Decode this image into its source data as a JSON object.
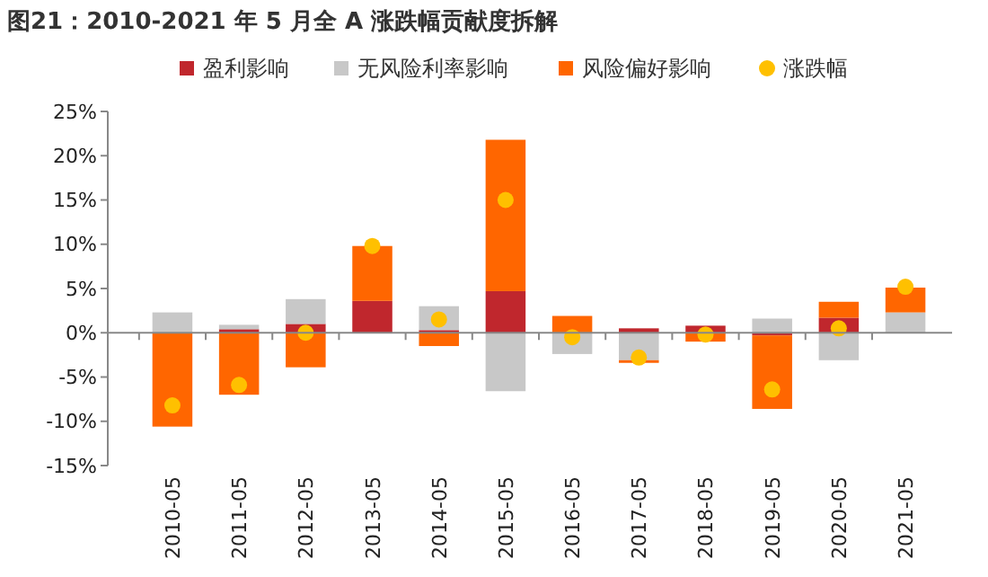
{
  "chart_data": {
    "type": "bar",
    "stacked": true,
    "title": "图21：2010-2021 年 5 月全 A 涨跌幅贡献度拆解",
    "categories": [
      "2010-05",
      "2011-05",
      "2012-05",
      "2013-05",
      "2014-05",
      "2015-05",
      "2016-05",
      "2017-05",
      "2018-05",
      "2019-05",
      "2020-05",
      "2021-05"
    ],
    "series": [
      {
        "name": "盈利影响",
        "color": "#c0272d",
        "values": [
          0,
          0.4,
          1.0,
          3.6,
          0.3,
          4.7,
          0,
          0.5,
          0.8,
          -0.3,
          1.7,
          0
        ]
      },
      {
        "name": "无风险利率影响",
        "color": "#c8c8c8",
        "values": [
          2.3,
          0.5,
          2.8,
          0,
          2.7,
          -6.6,
          -2.4,
          -3.1,
          0,
          1.6,
          -3.1,
          2.3
        ]
      },
      {
        "name": "风险偏好影响",
        "color": "#ff6600",
        "values": [
          -10.6,
          -7.0,
          -3.9,
          6.2,
          -1.5,
          17.1,
          1.9,
          -0.3,
          -1.0,
          -8.3,
          1.8,
          2.8
        ]
      },
      {
        "name": "涨跌幅",
        "type": "scatter",
        "color": "#ffc000",
        "values": [
          -8.2,
          -5.9,
          0,
          9.8,
          1.5,
          15.0,
          -0.5,
          -2.8,
          -0.2,
          -6.4,
          0.5,
          5.2
        ]
      }
    ],
    "ylim": [
      -15,
      25
    ],
    "yticks": [
      {
        "value": -15,
        "label": "-15%"
      },
      {
        "value": -10,
        "label": "-10%"
      },
      {
        "value": -5,
        "label": "-5%"
      },
      {
        "value": 0,
        "label": "0%"
      },
      {
        "value": 5,
        "label": "5%"
      },
      {
        "value": 10,
        "label": "10%"
      },
      {
        "value": 15,
        "label": "15%"
      },
      {
        "value": 20,
        "label": "20%"
      },
      {
        "value": 25,
        "label": "25%"
      }
    ],
    "legend": "top",
    "marker": "circle"
  }
}
